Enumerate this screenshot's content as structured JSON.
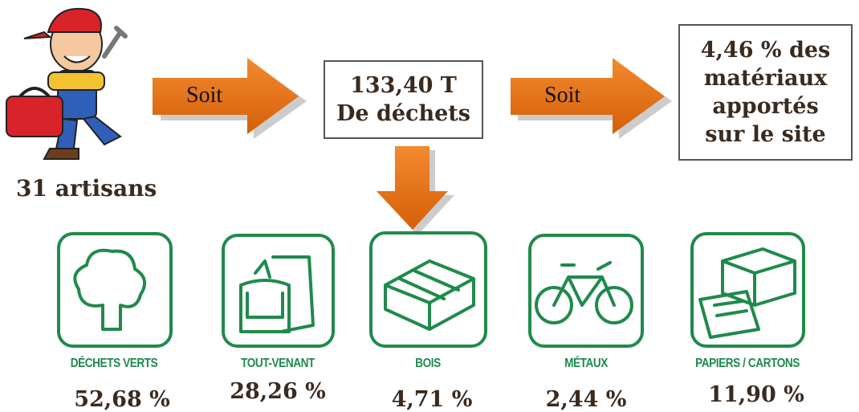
{
  "header": {
    "count_label": "31 artisans"
  },
  "flow": {
    "arrow_1": "Soit",
    "total": [
      "133,40 T",
      "De déchets"
    ],
    "arrow_2": "Soit",
    "share": [
      "4,46 % des",
      "matériaux",
      "apportés",
      "sur le site"
    ]
  },
  "categories": [
    {
      "label": "DÉCHETS VERTS",
      "percent": "52,68 %"
    },
    {
      "label": "TOUT-VENANT",
      "percent": "28,26 %"
    },
    {
      "label": "BOIS",
      "percent": "4,71 %"
    },
    {
      "label": "MÉTAUX",
      "percent": "2,44 %"
    },
    {
      "label": "PAPIERS / CARTONS",
      "percent": "11,90 %"
    }
  ]
}
